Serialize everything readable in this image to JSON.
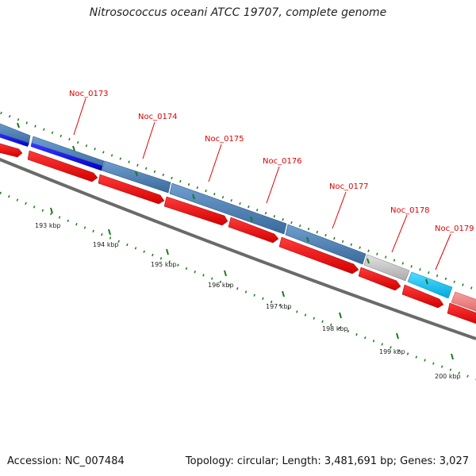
{
  "title": "Nitrosococcus oceani ATCC 19707, complete genome",
  "footer": {
    "accession": "Accession: NC_007484",
    "topology": "Topology: circular; Length: 3,481,691 bp; Genes: 3,027"
  },
  "colors": {
    "cds_forward": "#ff0000",
    "gene_steelblue": "#4a7fb5",
    "gene_blue": "#0000ff",
    "gene_gray": "#c8c8c8",
    "gene_cyan": "#00c8ff",
    "gene_pink": "#f08080",
    "backbone": "#777777",
    "ticks": "#1a7a1a",
    "label_red": "#e00000"
  },
  "genes": [
    {
      "label": "Noc_0173"
    },
    {
      "label": "Noc_0174"
    },
    {
      "label": "Noc_0175"
    },
    {
      "label": "Noc_0176"
    },
    {
      "label": "Noc_0177"
    },
    {
      "label": "Noc_0178"
    },
    {
      "label": "Noc_0179"
    }
  ],
  "kbp_labels": [
    "193 kbp",
    "194 kbp",
    "195 kbp",
    "196 kbp",
    "197 kbp",
    "198 kbp",
    "199 kbp",
    "200 kbp"
  ]
}
